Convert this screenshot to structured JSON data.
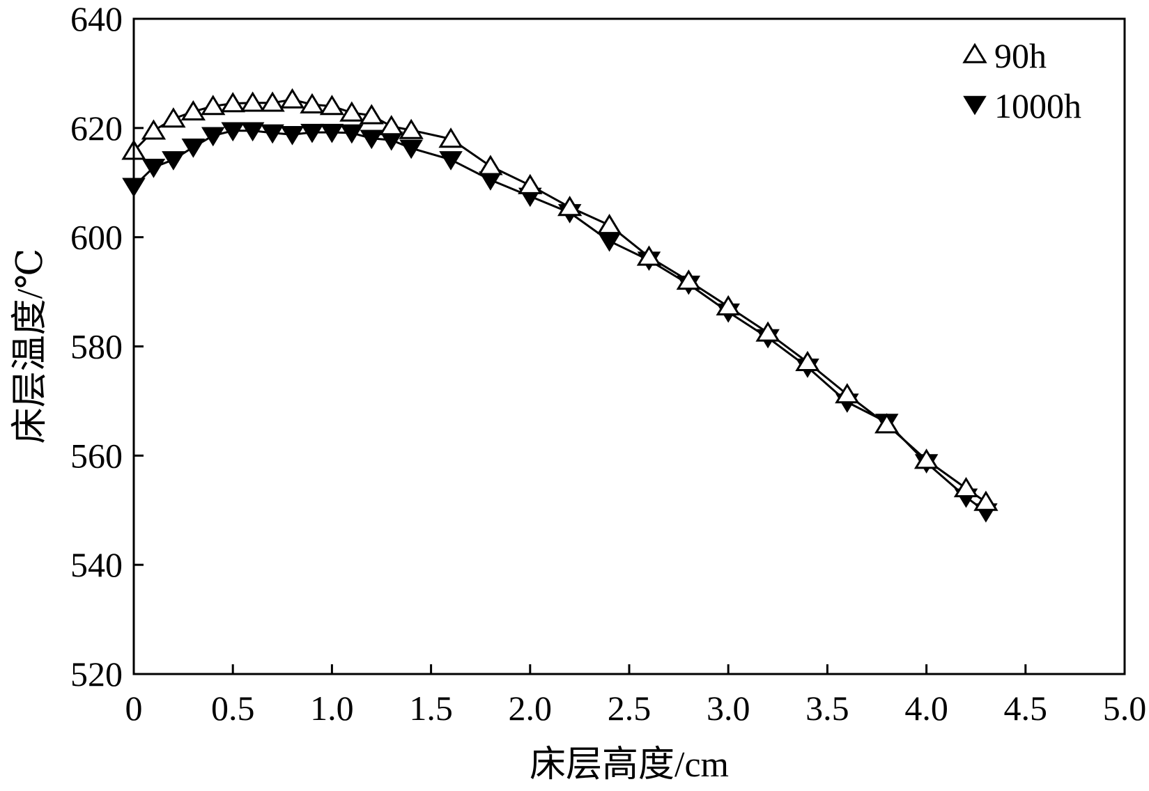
{
  "chart_data": {
    "type": "line",
    "title": "",
    "xlabel": "床层高度/cm",
    "ylabel": "床层温度/℃",
    "xlim": [
      0,
      5.0
    ],
    "ylim": [
      520,
      640
    ],
    "grid": false,
    "legend_position": "top-right",
    "x_ticks": [
      "0",
      "0.5",
      "1.0",
      "1.5",
      "2.0",
      "2.5",
      "3.0",
      "3.5",
      "4.0",
      "4.5",
      "5.0"
    ],
    "y_ticks": [
      "520",
      "540",
      "560",
      "580",
      "600",
      "620",
      "640"
    ],
    "series": [
      {
        "name": "90h",
        "marker": "triangle-up-open",
        "color": "#000000",
        "x": [
          0,
          0.1,
          0.2,
          0.3,
          0.4,
          0.5,
          0.6,
          0.7,
          0.8,
          0.9,
          1.0,
          1.1,
          1.2,
          1.3,
          1.4,
          1.6,
          1.8,
          2.0,
          2.2,
          2.4,
          2.6,
          2.8,
          3.0,
          3.2,
          3.4,
          3.6,
          3.8,
          4.0,
          4.2,
          4.3
        ],
        "y": [
          615.8,
          619.5,
          621.7,
          623.0,
          624.0,
          624.5,
          624.6,
          624.6,
          625.2,
          624.3,
          624.0,
          622.8,
          622.3,
          620.3,
          619.6,
          618.0,
          613.0,
          609.5,
          605.5,
          602.2,
          596.4,
          592.0,
          587.3,
          582.5,
          577.1,
          571.2,
          565.7,
          559.2,
          554.0,
          551.5
        ]
      },
      {
        "name": "1000h",
        "marker": "triangle-down-filled",
        "color": "#000000",
        "x": [
          0,
          0.1,
          0.2,
          0.3,
          0.4,
          0.5,
          0.6,
          0.7,
          0.8,
          0.9,
          1.0,
          1.1,
          1.2,
          1.3,
          1.4,
          1.6,
          1.8,
          2.0,
          2.2,
          2.4,
          2.6,
          2.8,
          3.0,
          3.2,
          3.4,
          3.6,
          3.8,
          4.0,
          4.2,
          4.3
        ],
        "y": [
          609.3,
          612.8,
          614.2,
          616.5,
          618.6,
          619.5,
          619.5,
          619.1,
          618.8,
          619.2,
          619.2,
          619.1,
          618.1,
          617.8,
          616.3,
          614.2,
          610.5,
          607.5,
          604.5,
          599.3,
          595.8,
          591.4,
          586.3,
          581.6,
          576.2,
          569.8,
          566.1,
          558.7,
          552.4,
          549.7
        ]
      }
    ]
  }
}
